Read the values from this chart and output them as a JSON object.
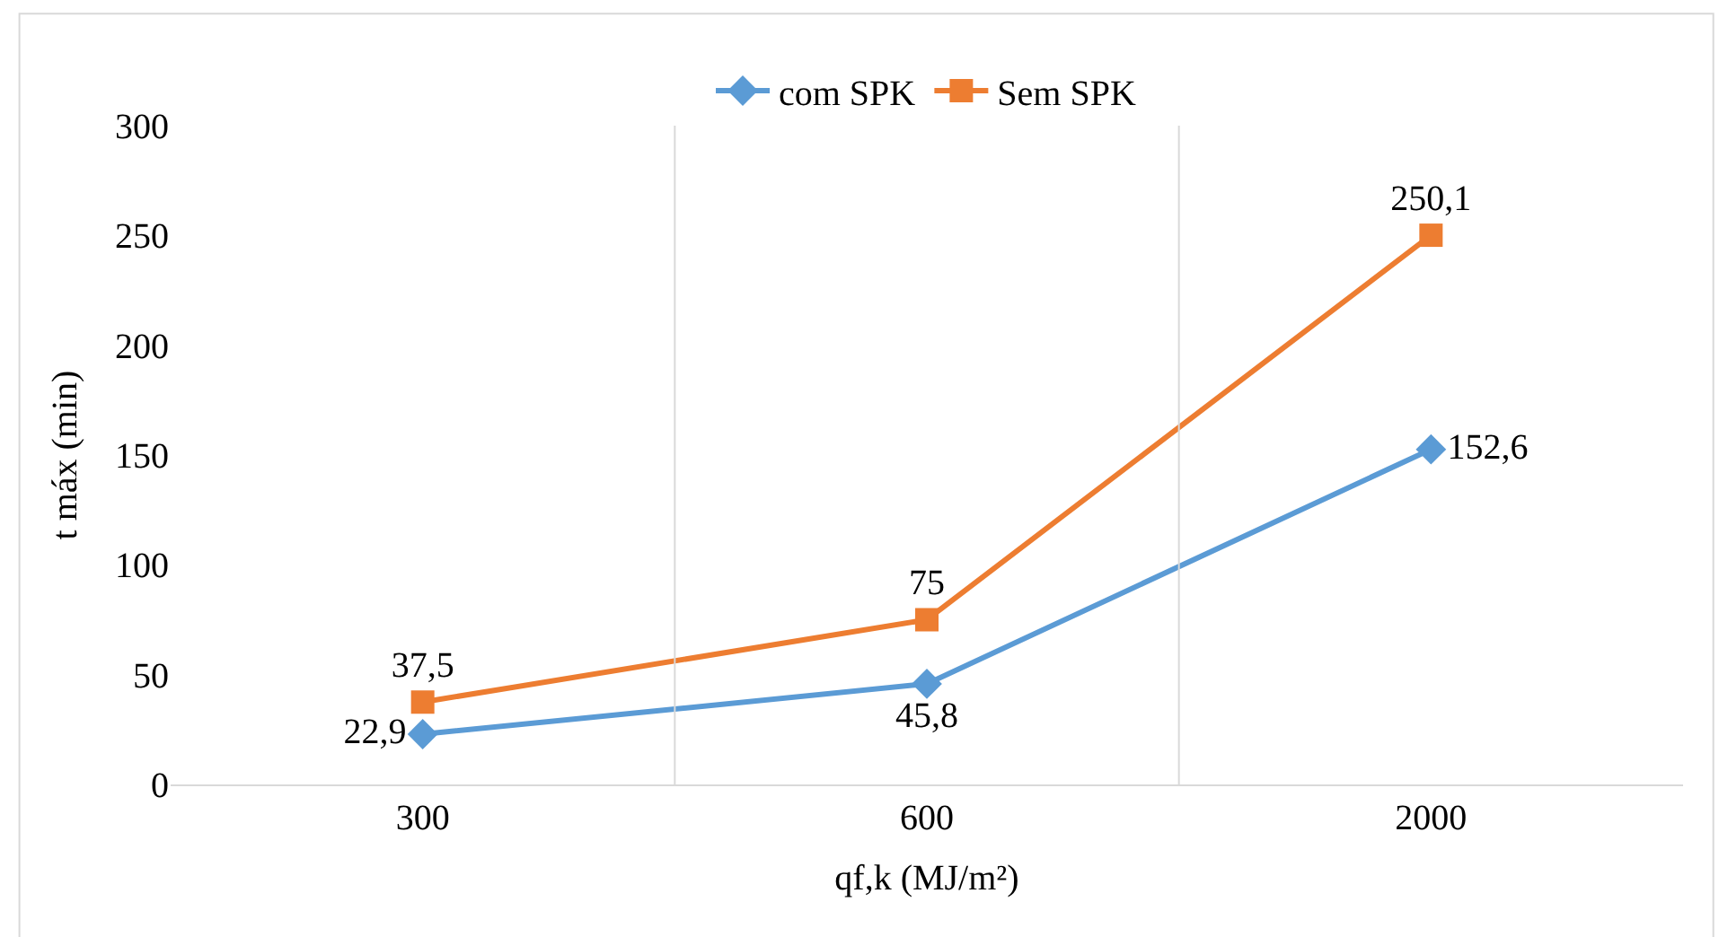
{
  "chart_data": {
    "type": "line",
    "xlabel": "qf,k (MJ/m²)",
    "ylabel": "t máx (min)",
    "categories": [
      "300",
      "600",
      "2000"
    ],
    "series": [
      {
        "name": "com SPK",
        "color": "#5b9bd5",
        "marker": "diamond",
        "values": [
          22.9,
          45.8,
          152.6
        ],
        "value_labels": [
          "22,9",
          "45,8",
          "152,6"
        ]
      },
      {
        "name": "Sem SPK",
        "color": "#ed7d31",
        "marker": "square",
        "values": [
          37.5,
          75,
          250.1
        ],
        "value_labels": [
          "37,5",
          "75",
          "250,1"
        ]
      }
    ],
    "ylim": [
      0,
      300
    ],
    "yticks": [
      0,
      50,
      100,
      150,
      200,
      250,
      300
    ],
    "grid": "x",
    "legend": "top",
    "line_style": "solid"
  }
}
